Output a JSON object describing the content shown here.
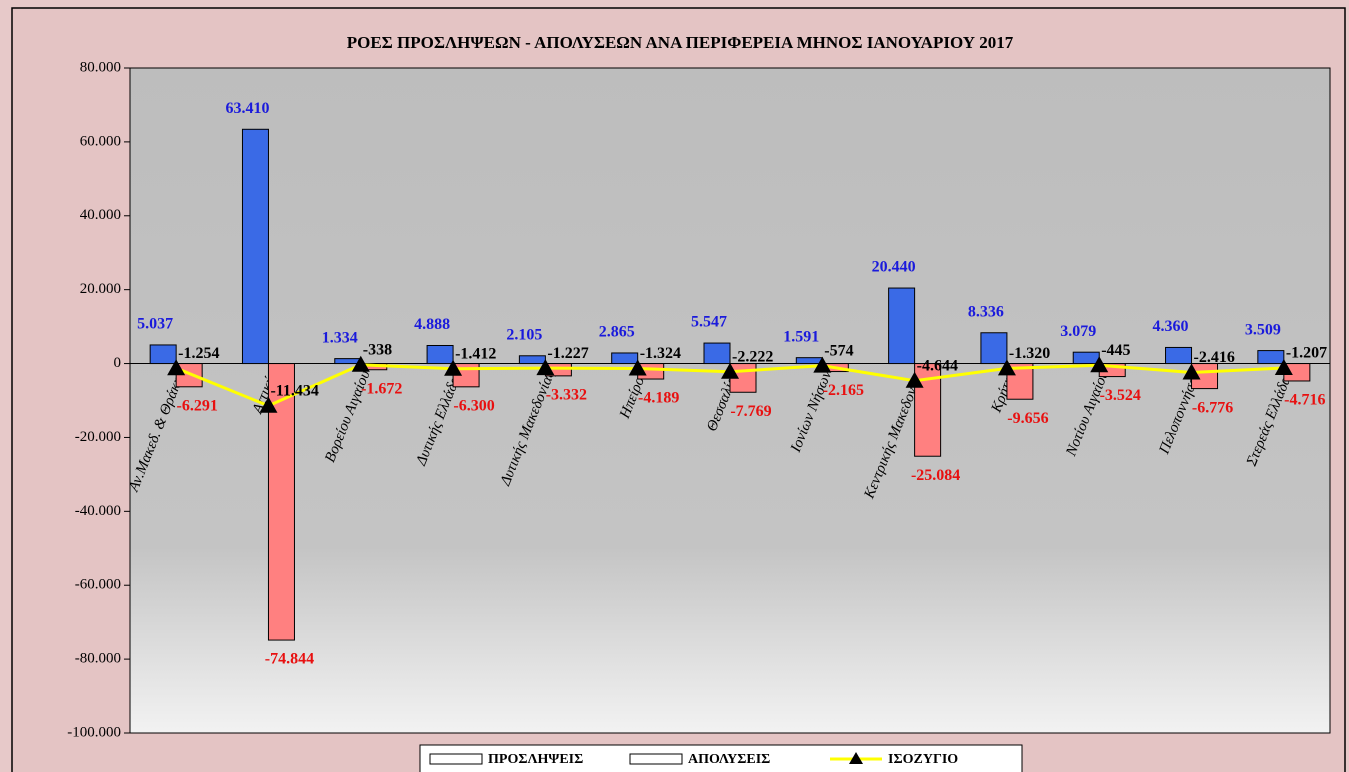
{
  "chart_data": {
    "type": "bar-line",
    "title": "ΡΟΕΣ ΠΡΟΣΛΗΨΕΩΝ - ΑΠΟΛΥΣΕΩΝ ΑΝΑ ΠΕΡΙΦΕΡΕΙΑ ΜΗΝΟΣ  ΙΑΝΟΥΑΡΙΟΥ  2017",
    "categories": [
      "Αν.Μακεδ. & Θράκης",
      "Αττικής",
      "Βορείου Αιγαίου",
      "Δυτικής Ελλάδας",
      "Δυτικής Μακεδονίας",
      "Ηπείρου",
      "Θεσσαλίας",
      "Ιονίων Νήσων",
      "Κεντρικής Μακεδονίας",
      "Κρήτης",
      "Νοτίου Αιγαίου",
      "Πελοποννήσου",
      "Στερεάς Ελλάδας"
    ],
    "series": [
      {
        "name": "ΠΡΟΣΛΗΨΕΙΣ",
        "type": "bar",
        "color": "#3a6ae6",
        "label_color": "#1a1adc",
        "values": [
          5037,
          63410,
          1334,
          4888,
          2105,
          2865,
          5547,
          1591,
          20440,
          8336,
          3079,
          4360,
          3509
        ],
        "value_labels": [
          "5.037",
          "63.410",
          "1.334",
          "4.888",
          "2.105",
          "2.865",
          "5.547",
          "1.591",
          "20.440",
          "8.336",
          "3.079",
          "4.360",
          "3.509"
        ]
      },
      {
        "name": "ΑΠΟΛΥΣΕΙΣ",
        "type": "bar",
        "color": "#ff8080",
        "label_color": "#e81010",
        "values": [
          -6291,
          -74844,
          -1672,
          -6300,
          -3332,
          -4189,
          -7769,
          -2165,
          -25084,
          -9656,
          -3524,
          -6776,
          -4716
        ],
        "value_labels": [
          "-6.291",
          "-74.844",
          "-1.672",
          "-6.300",
          "-3.332",
          "-4.189",
          "-7.769",
          "-2.165",
          "-25.084",
          "-9.656",
          "-3.524",
          "-6.776",
          "-4.716"
        ]
      },
      {
        "name": "ΙΣΟΖΥΓΙΟ",
        "type": "line",
        "color": "#ffff00",
        "label_color": "#000000",
        "values": [
          -1254,
          -11434,
          -338,
          -1412,
          -1227,
          -1324,
          -2222,
          -574,
          -4644,
          -1320,
          -445,
          -2416,
          -1207
        ],
        "value_labels": [
          "-1.254",
          "-11.434",
          "-338",
          "-1.412",
          "-1.227",
          "-1.324",
          "-2.222",
          "-574",
          "-4.644",
          "-1.320",
          "-445",
          "-2.416",
          "-1.207"
        ]
      }
    ],
    "ylim": [
      -100000,
      80000
    ],
    "yticks": [
      {
        "value": -100000,
        "label": "-100.000"
      },
      {
        "value": -80000,
        "label": "-80.000"
      },
      {
        "value": -60000,
        "label": "-60.000"
      },
      {
        "value": -40000,
        "label": "-40.000"
      },
      {
        "value": -20000,
        "label": "-20.000"
      },
      0,
      {
        "value": 20000,
        "label": "20.000"
      },
      {
        "value": 40000,
        "label": "40.000"
      },
      {
        "value": 60000,
        "label": "60.000"
      },
      {
        "value": 80000,
        "label": "80.000"
      }
    ]
  }
}
